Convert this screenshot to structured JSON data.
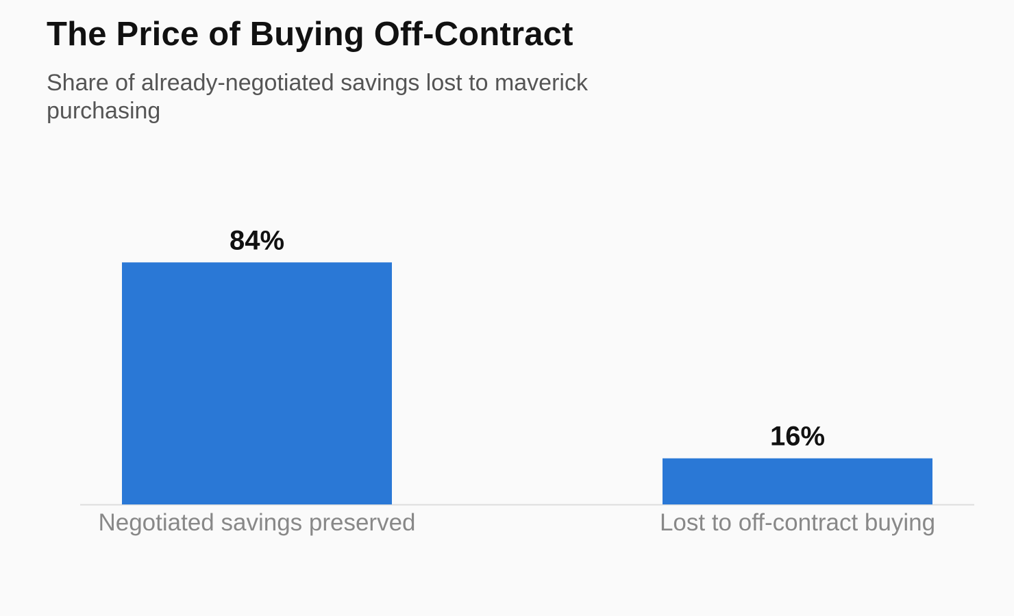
{
  "chart_data": {
    "type": "bar",
    "title": "The Price of Buying Off-Contract",
    "subtitle": "Share of already-negotiated savings lost to maverick purchasing",
    "categories": [
      "Negotiated savings preserved",
      "Lost to off-contract buying"
    ],
    "values": [
      84,
      16
    ],
    "value_labels": [
      "84%",
      "16%"
    ],
    "unit": "%",
    "ylim": [
      0,
      100
    ],
    "grid": false,
    "legend": "none",
    "colors": {
      "bar": "#2a78d6",
      "axis": "#dddddd",
      "title": "#111111",
      "subtitle": "#555555",
      "category_label": "#888888",
      "background": "#fafafa"
    }
  }
}
